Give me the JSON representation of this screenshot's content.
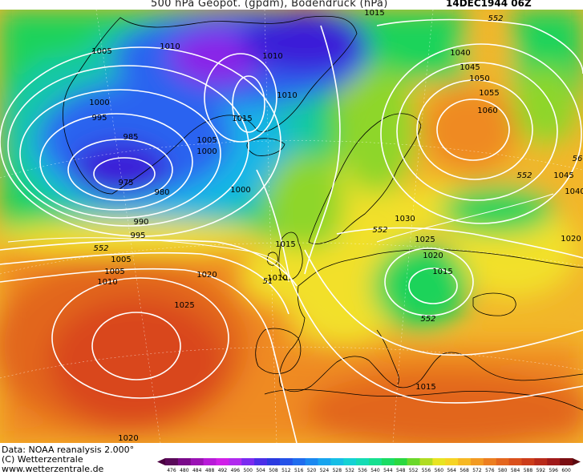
{
  "header": {
    "title": "500 hPa Geopot. (gpdm), Bodendruck (hPa)",
    "date": "14DEC1944 06Z"
  },
  "footer": {
    "data_source": "Data: NOAA reanalysis 2.000°",
    "copyright": "(C) Wetterzentrale",
    "website": "www.wetterzentrale.de"
  },
  "map": {
    "colors": {
      "deep_low": "#3a1bd8",
      "violet": "#8a22e8",
      "blue": "#2a64f0",
      "cyan": "#19b6e6",
      "teal": "#18c7a8",
      "green": "#1fd35a",
      "lime": "#8ed62a",
      "yellow": "#f2e02a",
      "gold": "#f2b62a",
      "orange": "#ef8a22",
      "dark_orange": "#e2661e",
      "red_orange": "#d9471e"
    },
    "isobar_labels": [
      {
        "text": "1015"
      },
      {
        "text": "1010"
      },
      {
        "text": "1005"
      },
      {
        "text": "1010"
      },
      {
        "text": "1010"
      },
      {
        "text": "1000"
      },
      {
        "text": "995"
      },
      {
        "text": "1015"
      },
      {
        "text": "985"
      },
      {
        "text": "1005"
      },
      {
        "text": "1000"
      },
      {
        "text": "975"
      },
      {
        "text": "980"
      },
      {
        "text": "1000"
      },
      {
        "text": "990"
      },
      {
        "text": "995"
      },
      {
        "text": "1005"
      },
      {
        "text": "1005"
      },
      {
        "text": "1010"
      },
      {
        "text": "1015"
      },
      {
        "text": "1020"
      },
      {
        "text": "1025"
      },
      {
        "text": "1010"
      },
      {
        "text": "1040"
      },
      {
        "text": "1045"
      },
      {
        "text": "1050"
      },
      {
        "text": "1055"
      },
      {
        "text": "1060"
      },
      {
        "text": "1045"
      },
      {
        "text": "1040"
      },
      {
        "text": "1030"
      },
      {
        "text": "1025"
      },
      {
        "text": "1020"
      },
      {
        "text": "1015"
      },
      {
        "text": "1020"
      },
      {
        "text": "1015"
      },
      {
        "text": "1020"
      }
    ],
    "geopot_labels": [
      {
        "text": "552"
      },
      {
        "text": "552"
      },
      {
        "text": "552"
      },
      {
        "text": "552"
      },
      {
        "text": "552"
      },
      {
        "text": "51"
      },
      {
        "text": "56"
      }
    ]
  },
  "colorbar": {
    "ticks": [
      "476",
      "480",
      "484",
      "488",
      "492",
      "496",
      "500",
      "504",
      "508",
      "512",
      "516",
      "520",
      "524",
      "528",
      "532",
      "536",
      "540",
      "544",
      "548",
      "552",
      "556",
      "560",
      "564",
      "568",
      "572",
      "576",
      "580",
      "584",
      "588",
      "592",
      "596",
      "600"
    ],
    "colors": [
      "#5a0a5a",
      "#7a0a8a",
      "#9a12b4",
      "#b81ad8",
      "#d020e8",
      "#b02aee",
      "#7a2af0",
      "#4a2ee8",
      "#2a3ae0",
      "#2452e8",
      "#1f6cee",
      "#1a88f0",
      "#18a4ee",
      "#16bee6",
      "#14d2d4",
      "#14dcb4",
      "#16e090",
      "#1adc64",
      "#2ad840",
      "#6ad82a",
      "#b0dc22",
      "#e8e422",
      "#f6d424",
      "#f6b824",
      "#f29a22",
      "#ec7e20",
      "#e4661e",
      "#da501c",
      "#cc3c1a",
      "#b82a1a",
      "#a01a1a",
      "#7a0e12"
    ]
  }
}
